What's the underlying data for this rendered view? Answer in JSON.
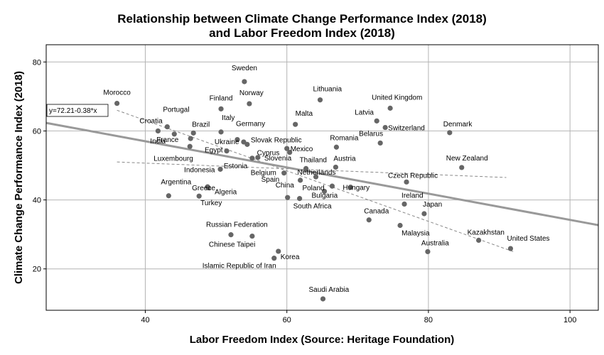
{
  "chart_data": {
    "type": "scatter",
    "title": "Relationship between Climate Change Performance Index (2018)",
    "title_line2": "and Labor Freedom Index (2018)",
    "xlabel": "Labor Freedom Index (Source: Heritage Foundation)",
    "ylabel": "Climate Change Performance Index (2018)",
    "xlim": [
      26,
      104
    ],
    "ylim": [
      8,
      85
    ],
    "xticks": [
      40,
      60,
      80,
      100
    ],
    "yticks": [
      20,
      40,
      60,
      80
    ],
    "grid": true,
    "fit_line": {
      "intercept": 72.21,
      "slope": -0.38,
      "label": "y=72.21-0.38*x"
    },
    "ci_lines": [
      {
        "x": [
          36,
          92
        ],
        "y": [
          66,
          25
        ]
      },
      {
        "x": [
          36,
          91
        ],
        "y": [
          51,
          46.5
        ]
      }
    ],
    "colors": {
      "point": "#666666",
      "fit": "#999999",
      "grid": "#b4b4b4",
      "frame": "#000000"
    },
    "points": [
      {
        "label": "Sweden",
        "x": 54.0,
        "y": 74.3
      },
      {
        "label": "Morocco",
        "x": 36.0,
        "y": 68.0
      },
      {
        "label": "Finland",
        "x": 50.7,
        "y": 66.4
      },
      {
        "label": "Norway",
        "x": 54.7,
        "y": 67.9
      },
      {
        "label": "Lithuania",
        "x": 64.7,
        "y": 69.0
      },
      {
        "label": "United Kingdom",
        "x": 74.6,
        "y": 66.6
      },
      {
        "label": "Croatia",
        "x": 41.8,
        "y": 60.0
      },
      {
        "label": "Portugal",
        "x": 43.1,
        "y": 61.2
      },
      {
        "label": "Brazil",
        "x": 46.8,
        "y": 59.4
      },
      {
        "label": "India",
        "x": 44.1,
        "y": 59.1
      },
      {
        "label": "Italy",
        "x": 50.7,
        "y": 59.7
      },
      {
        "label": "Germany",
        "x": 53.0,
        "y": 57.5
      },
      {
        "label": "Ukraine",
        "x": 53.9,
        "y": 56.8
      },
      {
        "label": "Slovak Republic",
        "x": 54.4,
        "y": 56.1
      },
      {
        "label": "France",
        "x": 46.4,
        "y": 57.8
      },
      {
        "label": "Luxembourg",
        "x": 46.3,
        "y": 55.5
      },
      {
        "label": "Malta",
        "x": 61.2,
        "y": 61.9
      },
      {
        "label": "Latvia",
        "x": 72.7,
        "y": 62.9
      },
      {
        "label": "Switzerland",
        "x": 73.9,
        "y": 61.0
      },
      {
        "label": "Denmark",
        "x": 83.0,
        "y": 59.5
      },
      {
        "label": "Belarus",
        "x": 73.2,
        "y": 56.5
      },
      {
        "label": "Romania",
        "x": 67.0,
        "y": 55.3
      },
      {
        "label": "Mexico",
        "x": 60.0,
        "y": 54.9
      },
      {
        "label": "Cyprus",
        "x": 60.4,
        "y": 53.8
      },
      {
        "label": "Egypt",
        "x": 51.5,
        "y": 54.2
      },
      {
        "label": "Slovenia",
        "x": 55.9,
        "y": 52.3
      },
      {
        "label": "Thailand",
        "x": 62.7,
        "y": 49.1
      },
      {
        "label": "Austria",
        "x": 66.9,
        "y": 49.5
      },
      {
        "label": "New Zealand",
        "x": 84.7,
        "y": 49.4
      },
      {
        "label": "Estonia",
        "x": 55.1,
        "y": 52.1
      },
      {
        "label": "Indonesia",
        "x": 50.6,
        "y": 48.9
      },
      {
        "label": "Belgium",
        "x": 59.6,
        "y": 47.8
      },
      {
        "label": "Spain",
        "x": 61.9,
        "y": 45.7
      },
      {
        "label": "Netherlands",
        "x": 64.1,
        "y": 46.7
      },
      {
        "label": "Greece",
        "x": 48.8,
        "y": 43.8
      },
      {
        "label": "Czech Republic",
        "x": 76.9,
        "y": 45.2
      },
      {
        "label": "Algeria",
        "x": 48.9,
        "y": 43.5
      },
      {
        "label": "Poland",
        "x": 66.4,
        "y": 44.0
      },
      {
        "label": "Hungary",
        "x": 69.0,
        "y": 43.7
      },
      {
        "label": "Argentina",
        "x": 43.3,
        "y": 41.2
      },
      {
        "label": "Turkey",
        "x": 47.6,
        "y": 41.1
      },
      {
        "label": "China",
        "x": 60.1,
        "y": 40.7
      },
      {
        "label": "Bulgaria",
        "x": 65.3,
        "y": 42.5
      },
      {
        "label": "South Africa",
        "x": 61.8,
        "y": 40.4
      },
      {
        "label": "Ireland",
        "x": 76.6,
        "y": 38.8
      },
      {
        "label": "Japan",
        "x": 79.4,
        "y": 36.0
      },
      {
        "label": "Canada",
        "x": 71.6,
        "y": 34.2
      },
      {
        "label": "Malaysia",
        "x": 76.0,
        "y": 32.6
      },
      {
        "label": "Kazakhstan",
        "x": 87.1,
        "y": 28.3
      },
      {
        "label": "Australia",
        "x": 79.9,
        "y": 25.0
      },
      {
        "label": "United States",
        "x": 91.6,
        "y": 25.9
      },
      {
        "label": "Russian Federation",
        "x": 52.1,
        "y": 29.9
      },
      {
        "label": "Chinese Taipei",
        "x": 55.1,
        "y": 29.5
      },
      {
        "label": "Korea",
        "x": 58.8,
        "y": 25.1
      },
      {
        "label": "Islamic Republic of Iran",
        "x": 58.2,
        "y": 23.1
      },
      {
        "label": "Saudi Arabia",
        "x": 65.1,
        "y": 11.3
      }
    ]
  }
}
